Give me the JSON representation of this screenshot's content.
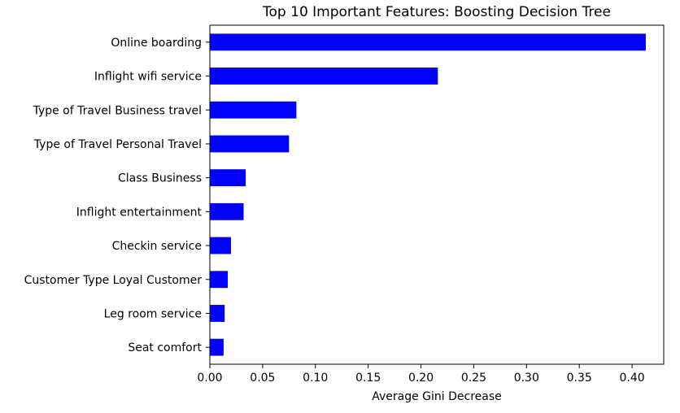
{
  "chart_data": {
    "type": "bar",
    "orientation": "horizontal",
    "title": "Top 10 Important Features: Boosting Decision Tree",
    "xlabel": "Average Gini Decrease",
    "ylabel": "",
    "categories": [
      "Online boarding",
      "Inflight wifi service",
      "Type of Travel Business travel",
      "Type of Travel Personal Travel",
      "Class Business",
      "Inflight entertainment",
      "Checkin service",
      "Customer Type Loyal Customer",
      "Leg room service",
      "Seat comfort"
    ],
    "values": [
      0.413,
      0.216,
      0.082,
      0.075,
      0.034,
      0.032,
      0.02,
      0.017,
      0.014,
      0.013
    ],
    "xlim": [
      0,
      0.43
    ],
    "xticks": [
      "0.00",
      "0.05",
      "0.10",
      "0.15",
      "0.20",
      "0.25",
      "0.30",
      "0.35",
      "0.40"
    ],
    "bar_color": "#0000ff",
    "grid": false,
    "legend": "none"
  }
}
